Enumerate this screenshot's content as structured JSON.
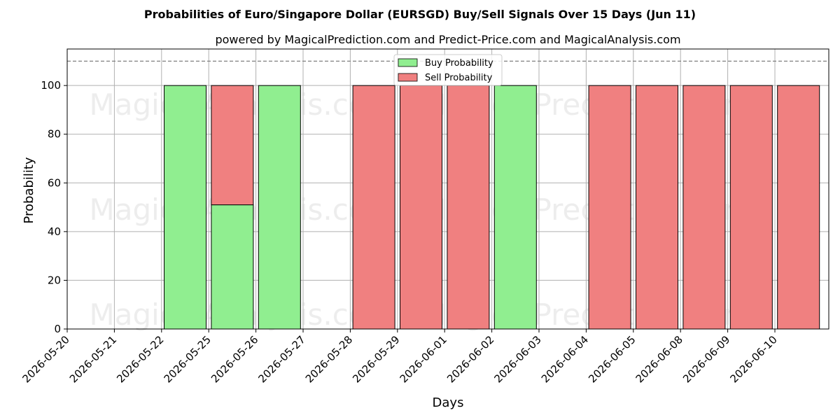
{
  "title": "Probabilities of Euro/Singapore Dollar (EURSGD) Buy/Sell Signals Over 15 Days (Jun 11)",
  "subtitle": "powered by MagicalPrediction.com and Predict-Price.com and MagicalAnalysis.com",
  "watermarks": [
    "MagicalAnalysis.com",
    "MagicalPrediction.com"
  ],
  "colors": {
    "buy": "#90ee90",
    "sell": "#f08080",
    "edge": "#000000",
    "grid": "#b0b0b0",
    "threshold": "#808080"
  },
  "chart_data": {
    "type": "bar",
    "stacked": true,
    "xlabel": "Days",
    "ylabel": "Probability",
    "categories": [
      "2026-05-20",
      "2026-05-21",
      "2026-05-22",
      "2026-05-25",
      "2026-05-26",
      "2026-05-27",
      "2026-05-28",
      "2026-05-29",
      "2026-06-01",
      "2026-06-02",
      "2026-06-03",
      "2026-06-04",
      "2026-06-05",
      "2026-06-08",
      "2026-06-09",
      "2026-06-10"
    ],
    "series": [
      {
        "name": "Buy Probability",
        "values": [
          0,
          0,
          100,
          51,
          100,
          0,
          0,
          0,
          0,
          100,
          0,
          0,
          0,
          0,
          0,
          0
        ]
      },
      {
        "name": "Sell Probability",
        "values": [
          0,
          0,
          0,
          49,
          0,
          0,
          100,
          100,
          100,
          0,
          0,
          100,
          100,
          100,
          100,
          100
        ]
      }
    ],
    "ylim": [
      0,
      115
    ],
    "yticks": [
      0,
      20,
      40,
      60,
      80,
      100
    ],
    "threshold": 110,
    "grid": true,
    "legend": "top-center"
  }
}
